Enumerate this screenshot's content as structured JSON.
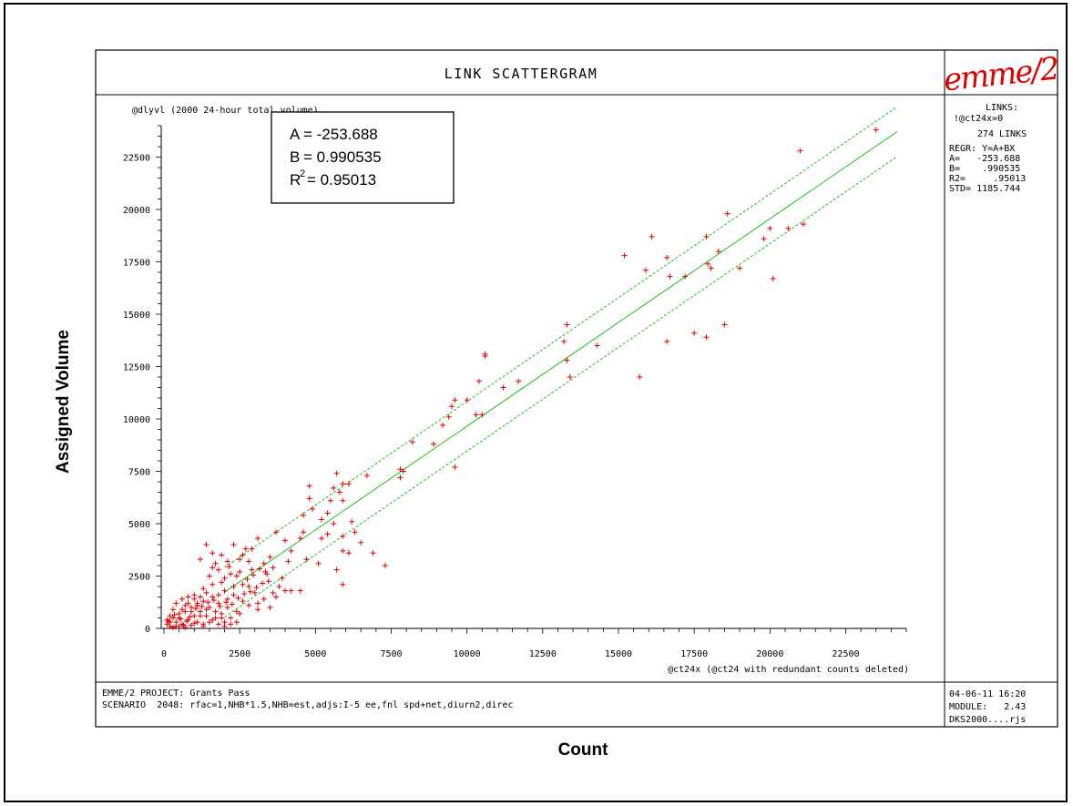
{
  "page": {
    "outer_ylabel": "Assigned Volume",
    "outer_xlabel": "Count"
  },
  "header": {
    "title": "LINK SCATTERGRAM",
    "logo_text": "emme/2"
  },
  "regression_box": {
    "a_label": "A",
    "a_value": "= -253.688",
    "b_label": "B",
    "b_value": "= 0.990535",
    "r_label": "R",
    "r_sup": "2",
    "r_value": "= 0.95013"
  },
  "side_panel": {
    "links_label": "LINKS:",
    "links_filter": "!@ct24x=0",
    "links_count": "274 LINKS",
    "regr": "REGR: Y=A+BX",
    "a_line": "A=   -253.688",
    "b_line": "B=    .990535",
    "r2_line": "R2=     .95013",
    "std_line": "STD= 1185.744"
  },
  "footer": {
    "project_line": "EMME/2 PROJECT: Grants Pass",
    "scenario_line": "SCENARIO  2048: rfac=1,NHB*1.5,NHB=est,adjs:I-5 ee,fnl spd+net,diurn2,direc",
    "datetime": "04-06-11 16:20",
    "module": "MODULE:   2.43",
    "user": "DKS2000....rjs"
  },
  "colors": {
    "points": "#dd0000",
    "regression": "#00bb00",
    "frame": "#000000"
  },
  "chart_data": {
    "type": "scatter",
    "title": "LINK SCATTERGRAM",
    "xlabel": "@ct24x (@ct24 with redundant counts deleted)",
    "ylabel": "@dlyvl (2000 24-hour total volume)",
    "xlim": [
      0,
      24500
    ],
    "ylim": [
      0,
      24000
    ],
    "x_ticks": [
      0,
      2500,
      5000,
      7500,
      10000,
      12500,
      15000,
      17500,
      20000,
      22500
    ],
    "y_ticks": [
      0,
      2500,
      5000,
      7500,
      10000,
      12500,
      15000,
      17500,
      20000,
      22500
    ],
    "regression": {
      "a": -253.688,
      "b": 0.990535,
      "r2": 0.95013,
      "std": 1185.744,
      "band": 1185.744
    },
    "points": [
      [
        23500,
        23800
      ],
      [
        21000,
        22800
      ],
      [
        21100,
        19300
      ],
      [
        20600,
        19100
      ],
      [
        20000,
        19100
      ],
      [
        19800,
        18600
      ],
      [
        20100,
        16700
      ],
      [
        19000,
        17200
      ],
      [
        18600,
        19800
      ],
      [
        18300,
        18000
      ],
      [
        17900,
        18700
      ],
      [
        17950,
        17400
      ],
      [
        18050,
        17200
      ],
      [
        17500,
        14100
      ],
      [
        17900,
        13900
      ],
      [
        18500,
        14500
      ],
      [
        17200,
        16800
      ],
      [
        16600,
        17700
      ],
      [
        16700,
        16800
      ],
      [
        16600,
        13700
      ],
      [
        16100,
        18700
      ],
      [
        15900,
        17100
      ],
      [
        15200,
        17800
      ],
      [
        15700,
        12000
      ],
      [
        14300,
        13500
      ],
      [
        13300,
        14500
      ],
      [
        13200,
        13700
      ],
      [
        13300,
        12800
      ],
      [
        13400,
        12000
      ],
      [
        11700,
        11800
      ],
      [
        11200,
        11500
      ],
      [
        10600,
        13100
      ],
      [
        10600,
        13000
      ],
      [
        10400,
        11800
      ],
      [
        10000,
        10900
      ],
      [
        10300,
        10200
      ],
      [
        10500,
        10200
      ],
      [
        9600,
        10900
      ],
      [
        9500,
        10600
      ],
      [
        9400,
        10100
      ],
      [
        9200,
        9700
      ],
      [
        9600,
        7700
      ],
      [
        8900,
        8800
      ],
      [
        8200,
        8900
      ],
      [
        7800,
        7600
      ],
      [
        7800,
        7200
      ],
      [
        7900,
        7500
      ],
      [
        6700,
        7300
      ],
      [
        6900,
        3600
      ],
      [
        7300,
        3000
      ],
      [
        5700,
        7400
      ],
      [
        5600,
        6700
      ],
      [
        5800,
        6500
      ],
      [
        5900,
        6900
      ],
      [
        6100,
        6900
      ],
      [
        5500,
        6100
      ],
      [
        5900,
        6100
      ],
      [
        4800,
        6800
      ],
      [
        4800,
        6200
      ],
      [
        4900,
        5700
      ],
      [
        5400,
        5500
      ],
      [
        5200,
        5200
      ],
      [
        4600,
        5400
      ],
      [
        5600,
        5000
      ],
      [
        6200,
        5100
      ],
      [
        5400,
        4500
      ],
      [
        5900,
        4400
      ],
      [
        4600,
        4600
      ],
      [
        4500,
        4300
      ],
      [
        4000,
        4200
      ],
      [
        3700,
        4600
      ],
      [
        3100,
        4300
      ],
      [
        4200,
        3700
      ],
      [
        4100,
        3200
      ],
      [
        5200,
        4300
      ],
      [
        5900,
        3700
      ],
      [
        6300,
        4600
      ],
      [
        6100,
        3600
      ],
      [
        4700,
        3300
      ],
      [
        5100,
        3100
      ],
      [
        4200,
        1800
      ],
      [
        4000,
        1800
      ],
      [
        4500,
        1800
      ],
      [
        5700,
        2800
      ],
      [
        5900,
        2100
      ],
      [
        6500,
        4100
      ],
      [
        3500,
        3400
      ],
      [
        3600,
        2900
      ],
      [
        3400,
        2600
      ],
      [
        3300,
        3100
      ],
      [
        2900,
        3800
      ],
      [
        2800,
        3200
      ],
      [
        2600,
        3500
      ],
      [
        2900,
        2800
      ],
      [
        2500,
        2700
      ],
      [
        2400,
        2500
      ],
      [
        2200,
        2600
      ],
      [
        2000,
        2400
      ],
      [
        1900,
        2200
      ],
      [
        1800,
        2800
      ],
      [
        1600,
        2100
      ],
      [
        1700,
        3100
      ],
      [
        1900,
        3500
      ],
      [
        2100,
        3200
      ],
      [
        2500,
        3300
      ],
      [
        2700,
        3800
      ],
      [
        2300,
        4000
      ],
      [
        1600,
        3600
      ],
      [
        1200,
        3300
      ],
      [
        1400,
        4000
      ],
      [
        1600,
        2900
      ],
      [
        2800,
        2000
      ],
      [
        3000,
        1700
      ],
      [
        3300,
        1400
      ],
      [
        3700,
        1500
      ],
      [
        3500,
        1000
      ],
      [
        3100,
        900
      ],
      [
        2600,
        1300
      ],
      [
        2300,
        1600
      ],
      [
        2000,
        1800
      ],
      [
        2400,
        800
      ],
      [
        2100,
        1000
      ],
      [
        1900,
        700
      ],
      [
        1800,
        1200
      ],
      [
        1600,
        1500
      ],
      [
        1400,
        1700
      ],
      [
        1200,
        1500
      ],
      [
        1000,
        1600
      ],
      [
        800,
        1500
      ],
      [
        600,
        1400
      ],
      [
        400,
        1200
      ],
      [
        300,
        900
      ],
      [
        200,
        600
      ],
      [
        100,
        400
      ],
      [
        100,
        200
      ],
      [
        200,
        100
      ],
      [
        400,
        300
      ],
      [
        500,
        500
      ],
      [
        700,
        800
      ],
      [
        900,
        1000
      ],
      [
        1100,
        1100
      ],
      [
        1300,
        1300
      ],
      [
        1500,
        1000
      ],
      [
        1700,
        800
      ],
      [
        1900,
        500
      ],
      [
        1600,
        400
      ],
      [
        1400,
        600
      ],
      [
        1200,
        800
      ],
      [
        1000,
        600
      ],
      [
        800,
        400
      ],
      [
        600,
        200
      ],
      [
        400,
        100
      ],
      [
        300,
        50
      ],
      [
        500,
        100
      ],
      [
        700,
        50
      ],
      [
        900,
        150
      ],
      [
        1100,
        300
      ],
      [
        1300,
        200
      ],
      [
        1500,
        300
      ],
      [
        1800,
        200
      ],
      [
        2000,
        300
      ],
      [
        2200,
        500
      ],
      [
        2500,
        700
      ],
      [
        2800,
        1100
      ],
      [
        3100,
        1200
      ],
      [
        3600,
        1700
      ],
      [
        3800,
        2000
      ],
      [
        3900,
        2400
      ],
      [
        2100,
        1400
      ],
      [
        2600,
        2100
      ],
      [
        1300,
        1900
      ],
      [
        1500,
        2500
      ],
      [
        1800,
        1600
      ],
      [
        2300,
        2000
      ],
      [
        1100,
        1200
      ],
      [
        900,
        800
      ],
      [
        700,
        1100
      ],
      [
        500,
        700
      ],
      [
        300,
        500
      ],
      [
        200,
        300
      ],
      [
        600,
        900
      ],
      [
        800,
        1200
      ],
      [
        1000,
        1400
      ],
      [
        1200,
        600
      ],
      [
        1400,
        900
      ],
      [
        1700,
        500
      ],
      [
        2000,
        100
      ],
      [
        2200,
        200
      ],
      [
        2400,
        300
      ],
      [
        1300,
        100
      ],
      [
        1000,
        250
      ],
      [
        750,
        350
      ],
      [
        550,
        450
      ],
      [
        350,
        650
      ],
      [
        150,
        350
      ],
      [
        650,
        150
      ],
      [
        850,
        550
      ],
      [
        1050,
        950
      ],
      [
        1250,
        1050
      ],
      [
        1450,
        1250
      ],
      [
        1650,
        1350
      ],
      [
        1850,
        1050
      ],
      [
        2050,
        1250
      ],
      [
        2250,
        1150
      ],
      [
        2450,
        1450
      ],
      [
        2650,
        1650
      ],
      [
        2850,
        1750
      ],
      [
        3050,
        1950
      ],
      [
        3250,
        2150
      ],
      [
        3450,
        2250
      ],
      [
        2950,
        2550
      ],
      [
        3150,
        2850
      ],
      [
        3350,
        2700
      ],
      [
        2750,
        2350
      ],
      [
        2150,
        2950
      ]
    ]
  }
}
